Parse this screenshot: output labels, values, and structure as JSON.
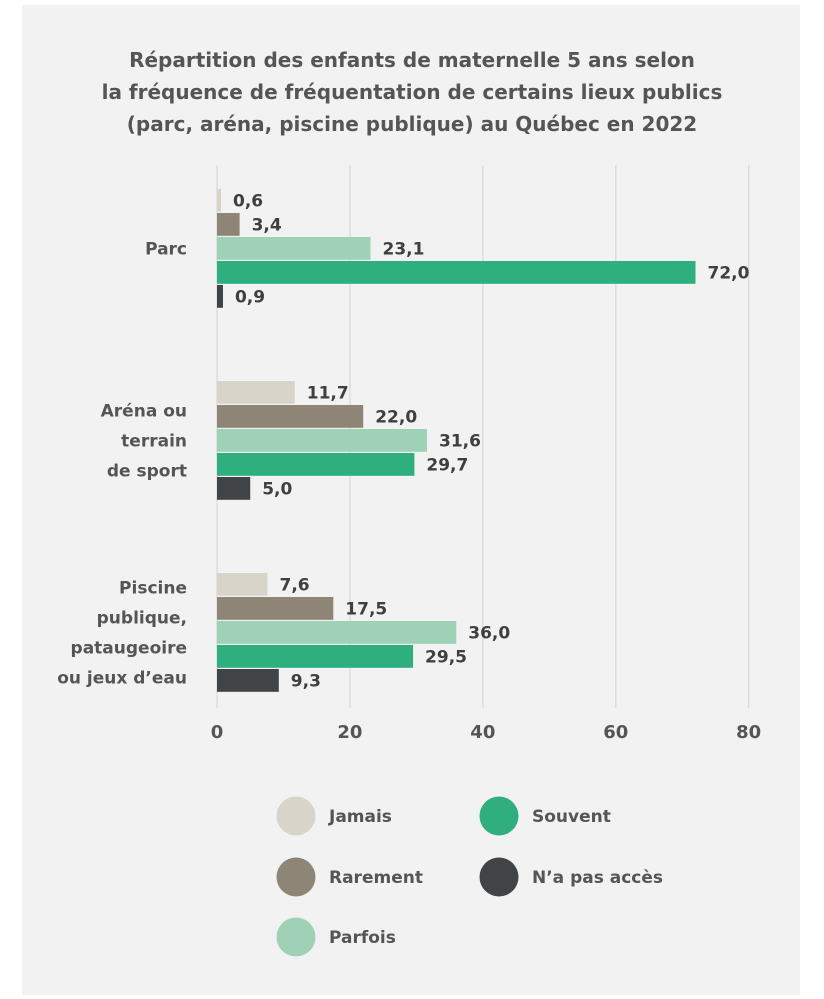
{
  "chart_data": {
    "type": "bar",
    "orientation": "horizontal",
    "title_lines": [
      "Répartition des enfants de maternelle 5 ans selon",
      "la fréquence de fréquentation de certains lieux publics",
      "(parc, aréna, piscine publique) au Québec en 2022"
    ],
    "categories": [
      {
        "lines": [
          "Parc"
        ]
      },
      {
        "lines": [
          "Aréna ou",
          "terrain",
          "de sport"
        ]
      },
      {
        "lines": [
          "Piscine",
          "publique,",
          "pataugeoire",
          "ou jeux d’eau"
        ]
      }
    ],
    "series": [
      {
        "name": "Jamais",
        "color": "#d9d4ca",
        "values": [
          0.6,
          11.7,
          7.6
        ],
        "labels": [
          "0,6",
          "11,7",
          "7,6"
        ]
      },
      {
        "name": "Rarement",
        "color": "#8f8577",
        "values": [
          3.4,
          22.0,
          17.5
        ],
        "labels": [
          "3,4",
          "22,0",
          "17,5"
        ]
      },
      {
        "name": "Parfois",
        "color": "#9fd1b6",
        "values": [
          23.1,
          31.6,
          36.0
        ],
        "labels": [
          "23,1",
          "31,6",
          "36,0"
        ]
      },
      {
        "name": "Souvent",
        "color": "#2fae7e",
        "values": [
          72.0,
          29.7,
          29.5
        ],
        "labels": [
          "72,0",
          "29,7",
          "29,5"
        ]
      },
      {
        "name": "N’a pas accès",
        "color": "#404446",
        "values": [
          0.9,
          5.0,
          9.3
        ],
        "labels": [
          "0,9",
          "5,0",
          "9,3"
        ]
      }
    ],
    "xlim": [
      0,
      80
    ],
    "xticks": [
      0,
      20,
      40,
      60,
      80
    ],
    "grid": true,
    "legend": "bottom"
  }
}
